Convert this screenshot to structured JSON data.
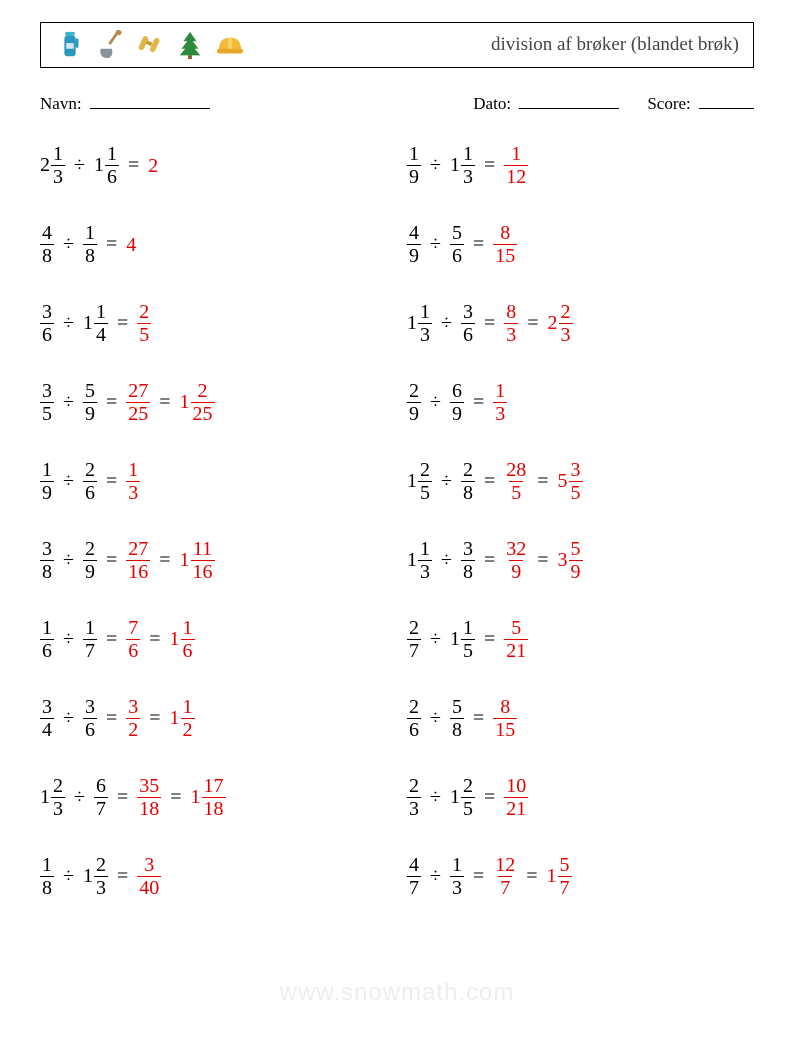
{
  "title": "division af brøker (blandet brøk)",
  "labels": {
    "name": "Navn:",
    "date": "Dato:",
    "score": "Score:"
  },
  "watermark": "www.snowmath.com",
  "operator": "÷",
  "equals": "=",
  "colors": {
    "answer": "#e60000",
    "text": "#000000"
  },
  "icons": [
    "thermos",
    "shovel",
    "binoculars",
    "pine-tree",
    "hard-hat"
  ],
  "problems": {
    "left": [
      {
        "a": {
          "w": 2,
          "n": 1,
          "d": 3
        },
        "b": {
          "w": 1,
          "n": 1,
          "d": 6
        },
        "ans": [
          {
            "int": 2
          }
        ]
      },
      {
        "a": {
          "n": 4,
          "d": 8
        },
        "b": {
          "n": 1,
          "d": 8
        },
        "ans": [
          {
            "int": 4
          }
        ]
      },
      {
        "a": {
          "n": 3,
          "d": 6
        },
        "b": {
          "w": 1,
          "n": 1,
          "d": 4
        },
        "ans": [
          {
            "n": 2,
            "d": 5
          }
        ]
      },
      {
        "a": {
          "n": 3,
          "d": 5
        },
        "b": {
          "n": 5,
          "d": 9
        },
        "ans": [
          {
            "n": 27,
            "d": 25
          },
          {
            "w": 1,
            "n": 2,
            "d": 25
          }
        ]
      },
      {
        "a": {
          "n": 1,
          "d": 9
        },
        "b": {
          "n": 2,
          "d": 6
        },
        "ans": [
          {
            "n": 1,
            "d": 3
          }
        ]
      },
      {
        "a": {
          "n": 3,
          "d": 8
        },
        "b": {
          "n": 2,
          "d": 9
        },
        "ans": [
          {
            "n": 27,
            "d": 16
          },
          {
            "w": 1,
            "n": 11,
            "d": 16
          }
        ]
      },
      {
        "a": {
          "n": 1,
          "d": 6
        },
        "b": {
          "n": 1,
          "d": 7
        },
        "ans": [
          {
            "n": 7,
            "d": 6
          },
          {
            "w": 1,
            "n": 1,
            "d": 6
          }
        ]
      },
      {
        "a": {
          "n": 3,
          "d": 4
        },
        "b": {
          "n": 3,
          "d": 6
        },
        "ans": [
          {
            "n": 3,
            "d": 2
          },
          {
            "w": 1,
            "n": 1,
            "d": 2
          }
        ]
      },
      {
        "a": {
          "w": 1,
          "n": 2,
          "d": 3
        },
        "b": {
          "n": 6,
          "d": 7
        },
        "ans": [
          {
            "n": 35,
            "d": 18
          },
          {
            "w": 1,
            "n": 17,
            "d": 18
          }
        ]
      },
      {
        "a": {
          "n": 1,
          "d": 8
        },
        "b": {
          "w": 1,
          "n": 2,
          "d": 3
        },
        "ans": [
          {
            "n": 3,
            "d": 40
          }
        ]
      }
    ],
    "right": [
      {
        "a": {
          "n": 1,
          "d": 9
        },
        "b": {
          "w": 1,
          "n": 1,
          "d": 3
        },
        "ans": [
          {
            "n": 1,
            "d": 12
          }
        ]
      },
      {
        "a": {
          "n": 4,
          "d": 9
        },
        "b": {
          "n": 5,
          "d": 6
        },
        "ans": [
          {
            "n": 8,
            "d": 15
          }
        ]
      },
      {
        "a": {
          "w": 1,
          "n": 1,
          "d": 3
        },
        "b": {
          "n": 3,
          "d": 6
        },
        "ans": [
          {
            "n": 8,
            "d": 3
          },
          {
            "w": 2,
            "n": 2,
            "d": 3
          }
        ]
      },
      {
        "a": {
          "n": 2,
          "d": 9
        },
        "b": {
          "n": 6,
          "d": 9
        },
        "ans": [
          {
            "n": 1,
            "d": 3
          }
        ]
      },
      {
        "a": {
          "w": 1,
          "n": 2,
          "d": 5
        },
        "b": {
          "n": 2,
          "d": 8
        },
        "ans": [
          {
            "n": 28,
            "d": 5
          },
          {
            "w": 5,
            "n": 3,
            "d": 5
          }
        ]
      },
      {
        "a": {
          "w": 1,
          "n": 1,
          "d": 3
        },
        "b": {
          "n": 3,
          "d": 8
        },
        "ans": [
          {
            "n": 32,
            "d": 9
          },
          {
            "w": 3,
            "n": 5,
            "d": 9
          }
        ]
      },
      {
        "a": {
          "n": 2,
          "d": 7
        },
        "b": {
          "w": 1,
          "n": 1,
          "d": 5
        },
        "ans": [
          {
            "n": 5,
            "d": 21
          }
        ]
      },
      {
        "a": {
          "n": 2,
          "d": 6
        },
        "b": {
          "n": 5,
          "d": 8
        },
        "ans": [
          {
            "n": 8,
            "d": 15
          }
        ]
      },
      {
        "a": {
          "n": 2,
          "d": 3
        },
        "b": {
          "w": 1,
          "n": 2,
          "d": 5
        },
        "ans": [
          {
            "n": 10,
            "d": 21
          }
        ]
      },
      {
        "a": {
          "n": 4,
          "d": 7
        },
        "b": {
          "n": 1,
          "d": 3
        },
        "ans": [
          {
            "n": 12,
            "d": 7
          },
          {
            "w": 1,
            "n": 5,
            "d": 7
          }
        ]
      }
    ]
  }
}
